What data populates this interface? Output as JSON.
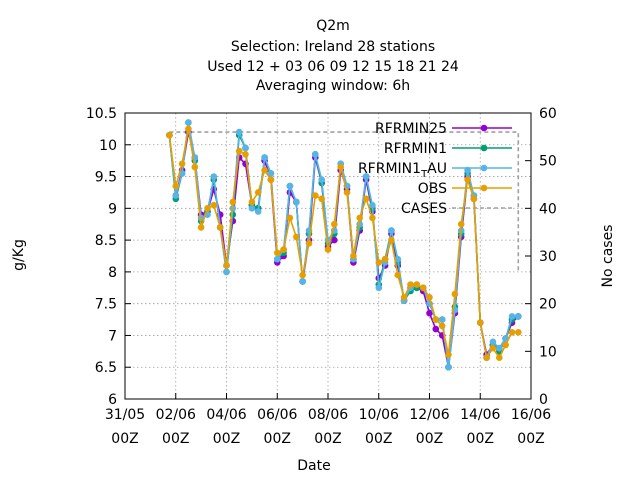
{
  "title_lines": [
    "Q2m",
    "Selection: Ireland      28 stations",
    "Used  12 + 03 06 09 12 15 18 21 24",
    "Averaging window:  6h"
  ],
  "chart_data": {
    "type": "line",
    "xlabel": "Date",
    "ylabel": "g/Kg",
    "y2label": "No cases",
    "xlim": [
      0,
      16
    ],
    "ylim": [
      6,
      10.5
    ],
    "y2lim": [
      0,
      60
    ],
    "grid": true,
    "legend_position": "top-right",
    "x_ticks": [
      {
        "v": 0,
        "l1": "31/05",
        "l2": "00Z"
      },
      {
        "v": 2,
        "l1": "02/06",
        "l2": "00Z"
      },
      {
        "v": 4,
        "l1": "04/06",
        "l2": "00Z"
      },
      {
        "v": 6,
        "l1": "06/06",
        "l2": "00Z"
      },
      {
        "v": 8,
        "l1": "08/06",
        "l2": "00Z"
      },
      {
        "v": 10,
        "l1": "10/06",
        "l2": "00Z"
      },
      {
        "v": 12,
        "l1": "12/06",
        "l2": "00Z"
      },
      {
        "v": 14,
        "l1": "14/06",
        "l2": "00Z"
      },
      {
        "v": 16,
        "l1": "16/06",
        "l2": "00Z"
      }
    ],
    "y_ticks": [
      "6",
      "6.5",
      "7",
      "7.5",
      "8",
      "8.5",
      "9",
      "9.5",
      "10",
      "10.5"
    ],
    "y2_ticks": [
      "0",
      "10",
      "20",
      "30",
      "40",
      "50",
      "60"
    ],
    "x": [
      1.75,
      2.0,
      2.25,
      2.5,
      2.75,
      3.0,
      3.25,
      3.5,
      3.75,
      4.0,
      4.25,
      4.5,
      4.75,
      5.0,
      5.25,
      5.5,
      5.75,
      6.0,
      6.25,
      6.5,
      6.75,
      7.0,
      7.25,
      7.5,
      7.75,
      8.0,
      8.25,
      8.5,
      8.75,
      9.0,
      9.25,
      9.5,
      9.75,
      10.0,
      10.25,
      10.5,
      10.75,
      11.0,
      11.25,
      11.5,
      11.75,
      12.0,
      12.25,
      12.5,
      12.75,
      13.0,
      13.25,
      13.5,
      13.75,
      14.0,
      14.25,
      14.5,
      14.75,
      15.0,
      15.25,
      15.5
    ],
    "series": [
      {
        "name": "RFRMIN25",
        "color": "#9400d3",
        "marker": "circle",
        "values": [
          10.15,
          9.2,
          9.6,
          10.2,
          9.8,
          8.9,
          8.95,
          9.3,
          8.9,
          8.1,
          8.8,
          9.8,
          9.7,
          9.05,
          9.0,
          9.75,
          9.45,
          8.15,
          8.25,
          9.25,
          9.1,
          7.85,
          8.5,
          9.8,
          9.4,
          8.4,
          8.5,
          9.6,
          9.3,
          8.15,
          8.65,
          9.45,
          8.95,
          7.9,
          8.1,
          8.6,
          8.1,
          7.55,
          7.75,
          7.75,
          7.7,
          7.35,
          7.1,
          7.0,
          6.5,
          7.35,
          8.55,
          9.5,
          9.15,
          7.2,
          6.7,
          6.85,
          6.8,
          6.95,
          7.2,
          7.3
        ]
      },
      {
        "name": "RFRMIN1",
        "color": "#009e73",
        "marker": "circle",
        "values": [
          10.15,
          9.15,
          9.55,
          10.35,
          9.75,
          8.8,
          8.95,
          9.45,
          8.7,
          8.0,
          8.9,
          10.15,
          9.95,
          9.05,
          9.0,
          9.8,
          9.55,
          8.2,
          8.3,
          9.35,
          9.1,
          7.85,
          8.6,
          9.85,
          9.4,
          8.45,
          8.6,
          9.7,
          9.35,
          8.2,
          8.7,
          9.5,
          9.0,
          7.8,
          8.2,
          8.65,
          8.15,
          7.55,
          7.7,
          7.75,
          7.75,
          7.5,
          7.25,
          7.25,
          6.5,
          7.45,
          8.6,
          9.55,
          9.2,
          7.2,
          6.65,
          6.85,
          6.75,
          6.95,
          7.25,
          7.3
        ]
      },
      {
        "name": "RFRMIN1_T_AU",
        "color": "#56b4e9",
        "marker": "circle",
        "values": [
          10.15,
          9.2,
          9.55,
          10.35,
          9.8,
          8.85,
          8.9,
          9.5,
          8.7,
          8.0,
          9.0,
          10.2,
          9.95,
          9.0,
          8.95,
          9.8,
          9.55,
          8.2,
          8.35,
          9.35,
          9.1,
          7.85,
          8.65,
          9.85,
          9.45,
          8.5,
          8.65,
          9.7,
          9.35,
          8.2,
          8.75,
          9.5,
          9.05,
          7.75,
          8.15,
          8.65,
          8.2,
          7.55,
          7.75,
          7.8,
          7.75,
          7.5,
          7.25,
          7.25,
          6.5,
          7.4,
          8.65,
          9.6,
          9.2,
          7.2,
          6.65,
          6.9,
          6.8,
          6.95,
          7.3,
          7.3
        ]
      },
      {
        "name": "OBS",
        "color": "#e69f00",
        "marker": "circle",
        "values": [
          10.15,
          9.35,
          9.7,
          10.25,
          9.65,
          8.7,
          9.0,
          9.05,
          8.7,
          8.1,
          9.1,
          9.9,
          9.85,
          9.1,
          9.25,
          9.6,
          9.45,
          8.3,
          8.35,
          8.85,
          8.55,
          7.95,
          8.45,
          9.2,
          9.15,
          8.35,
          8.75,
          9.65,
          9.25,
          8.25,
          8.85,
          9.15,
          8.85,
          8.15,
          8.2,
          8.5,
          7.95,
          7.6,
          7.8,
          7.8,
          7.75,
          7.6,
          7.25,
          7.15,
          6.7,
          7.65,
          8.75,
          9.45,
          9.15,
          7.2,
          6.65,
          6.8,
          6.65,
          6.85,
          7.05,
          7.05
        ]
      }
    ],
    "cases": {
      "name": "CASES",
      "color": "#a0a0a0",
      "axis": "y2",
      "x": [
        1.75,
        2.0,
        2.25,
        2.5,
        2.75,
        3.0,
        3.25,
        3.5,
        3.75,
        4.0,
        4.25,
        4.5,
        4.75,
        5.0,
        5.25,
        5.5,
        5.75,
        6.0,
        6.25,
        6.5,
        6.75,
        7.0,
        7.25,
        7.5,
        7.75,
        8.0,
        8.25,
        8.5,
        8.75,
        9.0,
        9.25,
        9.5,
        9.75,
        10.0,
        10.25,
        10.5,
        10.75,
        11.0,
        11.25,
        11.5,
        11.75,
        12.0,
        12.25,
        12.5,
        12.75,
        13.0,
        13.25,
        13.5,
        13.75,
        14.0,
        14.25,
        14.5,
        14.75,
        15.0,
        15.25,
        15.5,
        15.5
      ],
      "values": [
        56,
        56,
        56,
        56,
        56,
        56,
        56,
        56,
        56,
        56,
        56,
        56,
        56,
        56,
        56,
        56,
        56,
        56,
        56,
        56,
        56,
        56,
        56,
        56,
        56,
        56,
        56,
        56,
        56,
        56,
        56,
        56,
        56,
        56,
        56,
        56,
        56,
        56,
        56,
        56,
        56,
        56,
        56,
        56,
        56,
        56,
        56,
        56,
        56,
        56,
        56,
        56,
        56,
        56,
        56,
        56,
        27
      ]
    },
    "legend": [
      "RFRMIN25",
      "RFRMIN1",
      "RFRMIN1_T_AU",
      "OBS",
      "CASES"
    ]
  }
}
